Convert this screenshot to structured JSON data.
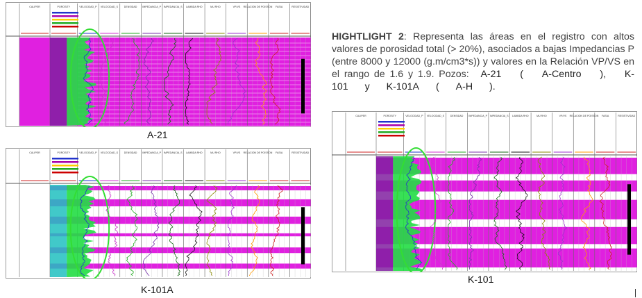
{
  "highlight": {
    "label": "HIGHTLIGHT 2",
    "body": ": Representa las áreas en el registro con altos valores de porosidad total (> 20%), asociados a bajas Impedancias P (entre 8000 y 12000 (g.m/cm3*s)) y valores en la Relación VP/VS en el rango de 1.6 y 1.9. Pozos:",
    "tail": [
      "A-21",
      "(",
      "A-Centro",
      "),",
      "K-101",
      "y",
      "K-101A",
      "(",
      "A-H",
      ")."
    ]
  },
  "panels": [
    {
      "caption": "A-21",
      "tracks": [
        "CALIPER",
        "POROSITY",
        "VELOCIDAD_P",
        "VELOCIDAD_S",
        "DENSIDAD",
        "IMPEDANCIA_P",
        "IMPEDANCIA_S",
        "LAMBDA RHO",
        "MU RHO",
        "VP/VS",
        "RELACION DE POISSON",
        "FASIA",
        "RESISTIVIDAD"
      ]
    },
    {
      "caption": "K-101A",
      "tracks": [
        "CALIPER",
        "POROSITY",
        "VELOCIDAD_P",
        "VELOCIDAD_S",
        "DENSIDAD",
        "IMPEDANCIA_P",
        "IMPEDANCIA_S",
        "LAMBDA RHO",
        "MU RHO",
        "VP/VS",
        "RELACION DE POISSON",
        "FASIA",
        "RESISTIVIDAD"
      ]
    },
    {
      "caption": "K-101",
      "tracks": [
        "CALIPER",
        "POROSITY",
        "VELOCIDAD_P",
        "VELOCIDAD_S",
        "DENSIDAD",
        "IMPEDANCIA_P",
        "IMPEDANCIA_S",
        "LAMBDA RHO",
        "MU RHO",
        "VP/VS",
        "RELACION DE POISSON",
        "FASIA",
        "RESISTIVIDAD"
      ]
    }
  ]
}
